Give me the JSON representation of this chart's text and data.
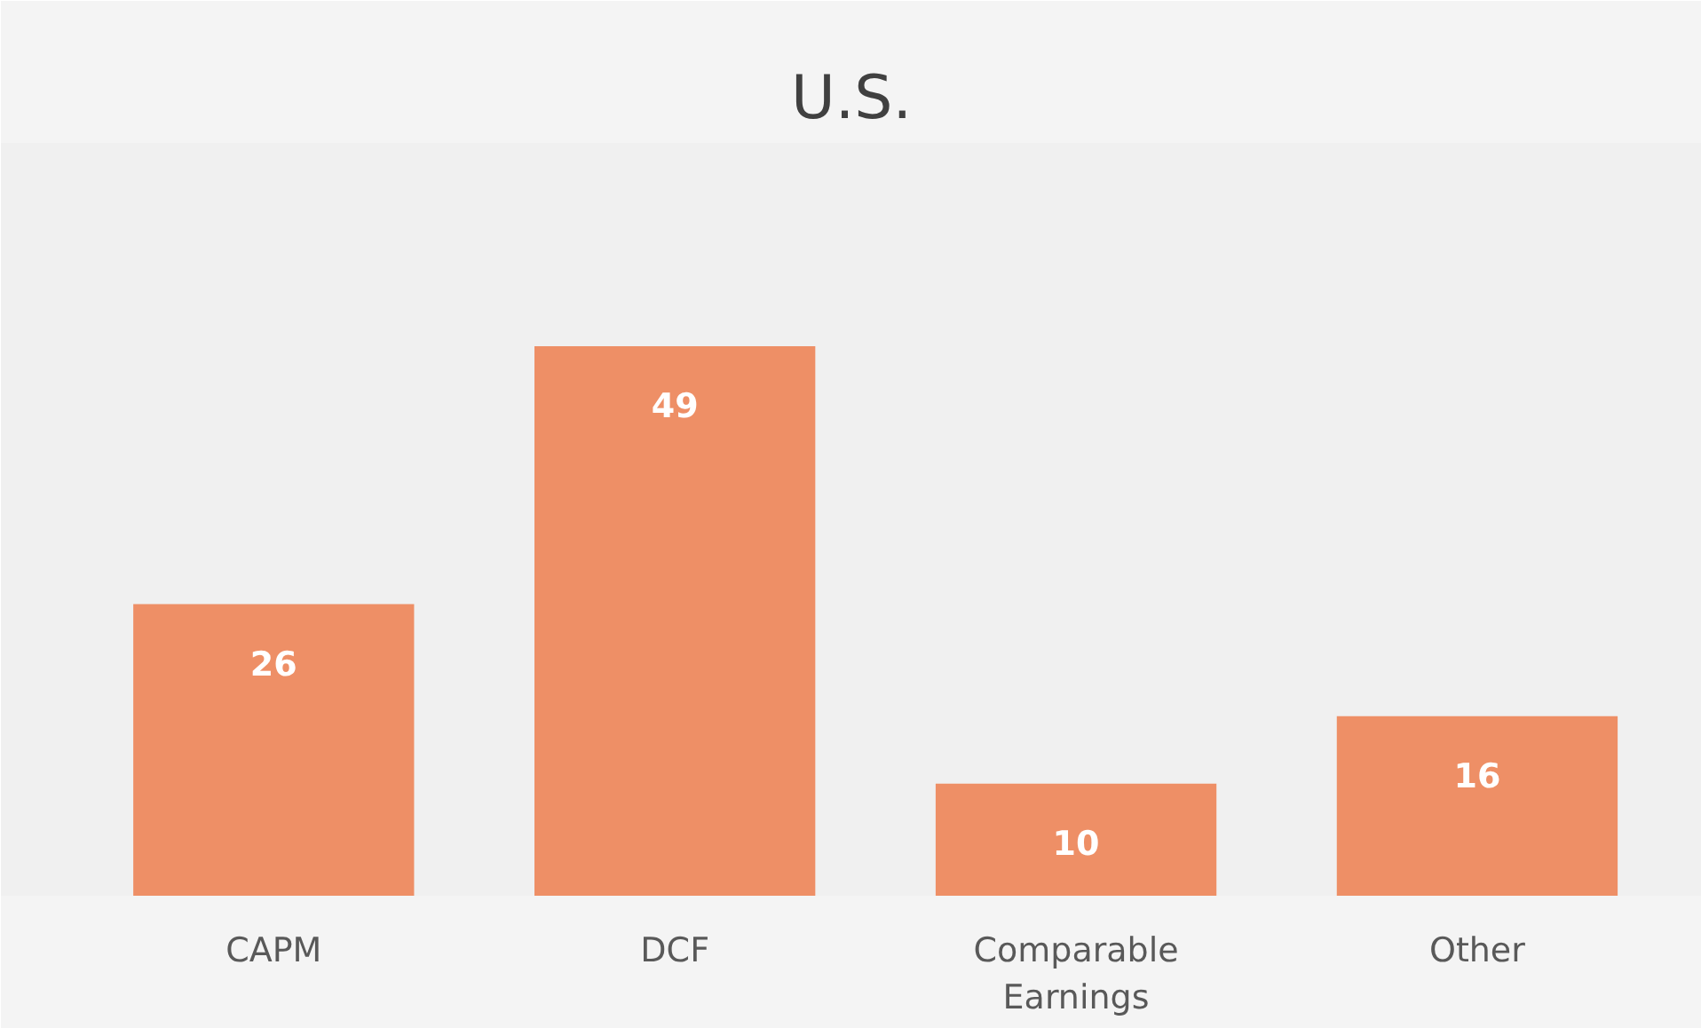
{
  "chart_data": {
    "type": "bar",
    "title": "U.S.",
    "categories": [
      "CAPM",
      "DCF",
      "Comparable Earnings",
      "Other"
    ],
    "values": [
      26,
      49,
      10,
      16
    ],
    "color": "#ee8f66",
    "data_labels": true,
    "grid": false
  }
}
